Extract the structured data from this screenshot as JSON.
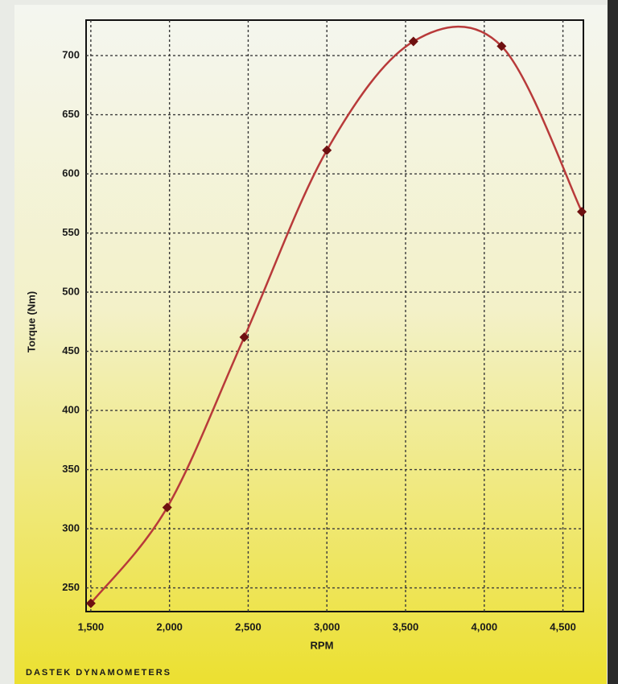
{
  "chart_data": {
    "type": "line",
    "x": [
      1500,
      1985,
      2475,
      3000,
      3550,
      4110,
      4620
    ],
    "values": [
      237,
      318,
      462,
      620,
      712,
      708,
      568
    ],
    "color": "#b83a3a",
    "marker_color": "#6e1010",
    "xlabel": "RPM",
    "ylabel": "Torque (Nm)",
    "xlim": [
      1470,
      4630
    ],
    "xticks": [
      {
        "value": 1500,
        "label": "1,500"
      },
      {
        "value": 2000,
        "label": "2,000"
      },
      {
        "value": 2500,
        "label": "2,500"
      },
      {
        "value": 3000,
        "label": "3,000"
      },
      {
        "value": 3500,
        "label": "3,500"
      },
      {
        "value": 4000,
        "label": "4,000"
      },
      {
        "value": 4500,
        "label": "4,500"
      }
    ],
    "ylim": [
      230,
      730
    ],
    "yticks": [
      250,
      300,
      350,
      400,
      450,
      500,
      550,
      600,
      650,
      700
    ],
    "grid": true,
    "footer": "DASTEK DYNAMOMETERS"
  }
}
